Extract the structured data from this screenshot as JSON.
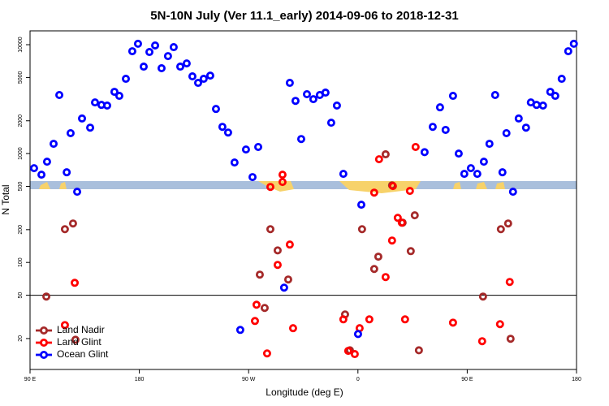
{
  "chart_data": {
    "type": "scatter",
    "title": "5N-10N July (Ver 11.1_early)   2014-09-06 to 2018-12-31",
    "x_label": "Longitude (deg E)",
    "y_label": "N Total",
    "log_y": true,
    "legend_position": "bottom-left",
    "reference_line": 50,
    "xlim": [
      90,
      540
    ],
    "ylim": [
      10.4,
      13400
    ],
    "xticks": [
      {
        "value": 90,
        "label": "90 E"
      },
      180,
      {
        "value": 270,
        "label": "90 W"
      },
      {
        "value": 360,
        "label": "0"
      },
      {
        "value": 450,
        "label": "90 E"
      },
      {
        "value": 540,
        "label": "180"
      }
    ],
    "yticks": [
      20,
      50,
      100,
      200,
      500,
      1000,
      2000,
      5000,
      10000
    ],
    "series": [
      {
        "name": "Land Nadir",
        "color": "#a52a2a",
        "x": [
          103.4,
          118.7,
          125.4,
          127.4,
          279.2,
          283.2,
          287.9,
          293.9,
          302.6,
          349.4,
          353.4,
          363.4,
          376.8,
          373.4,
          382.8,
          388.1,
          396.8,
          403.5,
          406.8,
          410.2,
          463,
          477.7,
          483.7,
          485.7
        ],
        "values": [
          48.6,
          202,
          228,
          19.5,
          77.3,
          38.2,
          202,
          129,
          69.7,
          33.3,
          15.6,
          202,
          113,
          87.1,
          984,
          511,
          232,
          127,
          271,
          15.6,
          48.6,
          202,
          228,
          19.9
        ]
      },
      {
        "name": "Land Glint",
        "color": "#ff0000",
        "x": [
          118.7,
          126.8,
          275.2,
          285.2,
          276.5,
          287.9,
          297.9,
          293.9,
          303.9,
          306.6,
          297.9,
          348,
          352,
          357.4,
          361.4,
          369.4,
          373.4,
          377.4,
          388.8,
          392.8,
          396.1,
          388.1,
          382.8,
          398.8,
          402.8,
          407.5,
          438.3,
          462.3,
          477,
          485
        ],
        "values": [
          26.6,
          65.0,
          29.0,
          14.6,
          40.9,
          494,
          640,
          95.0,
          146,
          24.9,
          548,
          30.0,
          15.4,
          14.4,
          24.9,
          30.0,
          438,
          887,
          503,
          257,
          232,
          159,
          73.4,
          30.0,
          454,
          1150,
          28.0,
          18.9,
          27.1,
          66.2
        ]
      },
      {
        "name": "Ocean Glint",
        "color": "#0000ff",
        "x": [
          93.3,
          99.4,
          104,
          109.4,
          114.1,
          120.2,
          123.4,
          128.8,
          132.8,
          139.5,
          143.5,
          148.8,
          153.5,
          159.5,
          163.5,
          168.9,
          174.2,
          178.9,
          183.6,
          188.3,
          193,
          198.3,
          203.6,
          208.3,
          213.7,
          219,
          223.7,
          228.4,
          233,
          238.4,
          243.1,
          248.4,
          253.1,
          258.4,
          267.8,
          273.2,
          277.9,
          299.2,
          303.9,
          308.6,
          313.3,
          318,
          323.3,
          328.6,
          333.3,
          338,
          342.7,
          348,
          362.8,
          360.1,
          263.1,
          414.9,
          421.6,
          427.6,
          432.2,
          438.3,
          443,
          447.6,
          453,
          458.3,
          463.7,
          468.3,
          473,
          479,
          482.3,
          487.7,
          492.4,
          498.4,
          502.4,
          507.1,
          512.4,
          518.4,
          522.5,
          527.8,
          533.2,
          537.8
        ],
        "values": [
          734,
          640,
          842,
          1230,
          3450,
          673,
          1540,
          446,
          2100,
          1730,
          2950,
          2800,
          2760,
          3690,
          3390,
          4860,
          8710,
          10200,
          6290,
          8570,
          9840,
          6080,
          7860,
          9500,
          6290,
          6730,
          5120,
          4460,
          4860,
          5200,
          2570,
          1760,
          1560,
          828,
          1090,
          608,
          1150,
          58.7,
          4460,
          3050,
          1360,
          3510,
          3160,
          3450,
          3630,
          1920,
          2760,
          651,
          339,
          22.0,
          24.0,
          1030,
          1760,
          2660,
          1650,
          3390,
          1000,
          651,
          734,
          651,
          842,
          1230,
          3450,
          673,
          1540,
          446,
          2100,
          1730,
          2950,
          2800,
          2760,
          3690,
          3390,
          4860,
          8710,
          10200
        ]
      }
    ]
  }
}
